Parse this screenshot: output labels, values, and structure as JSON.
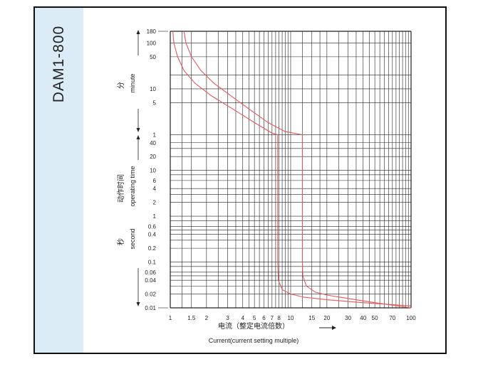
{
  "model": "DAM1-800",
  "chart_data": {
    "type": "line",
    "xlabel_cn": "电流（整定电流倍数）",
    "xlabel_en": "Current(current setting multiple)",
    "ylabel_cn": "动作时间",
    "ylabel_en": "operating time",
    "unit_minute_cn": "分",
    "unit_minute_en": "minute",
    "unit_second_cn": "秒",
    "unit_second_en": "second",
    "x_ticks": [
      "1",
      "1.5",
      "2",
      "3",
      "4",
      "5",
      "6",
      "7",
      "8",
      "10",
      "15",
      "20",
      "30",
      "40",
      "50",
      "70",
      "100"
    ],
    "y_ticks_minute": [
      "180",
      "100",
      "50",
      "10",
      "5",
      "1"
    ],
    "y_ticks_second": [
      "40",
      "20",
      "10",
      "6",
      "4",
      "2",
      "1",
      "0.6",
      "0.4",
      "0.2",
      "0.1",
      "0.06",
      "0.04",
      "0.02",
      "0.01"
    ],
    "xlim": [
      1,
      100
    ],
    "ylim_seconds": [
      0.01,
      10800
    ],
    "x_scale": "log",
    "y_scale": "log",
    "grid": true,
    "line_color": "#e05a5a",
    "series": [
      {
        "x": [
          1.05,
          1.07,
          1.15,
          1.3,
          1.6,
          2.2,
          3.2,
          5,
          7,
          7.8,
          7.8,
          7.8,
          7.8,
          7.9,
          8.5,
          10,
          13,
          20,
          40,
          100
        ],
        "y_s": [
          10800,
          6000,
          3000,
          1500,
          800,
          420,
          230,
          110,
          65,
          60,
          10,
          1,
          0.1,
          0.04,
          0.025,
          0.02,
          0.017,
          0.015,
          0.013,
          0.011
        ]
      },
      {
        "x": [
          1.3,
          1.35,
          1.5,
          1.8,
          2.3,
          3.2,
          4.6,
          6.5,
          9,
          12.5,
          12.5,
          12.5,
          12.5,
          12.6,
          13.5,
          16,
          20,
          30,
          50,
          100
        ],
        "y_s": [
          10800,
          6000,
          3000,
          1500,
          800,
          420,
          210,
          110,
          70,
          60,
          20,
          1,
          0.1,
          0.05,
          0.03,
          0.022,
          0.019,
          0.016,
          0.013,
          0.01
        ]
      }
    ]
  }
}
